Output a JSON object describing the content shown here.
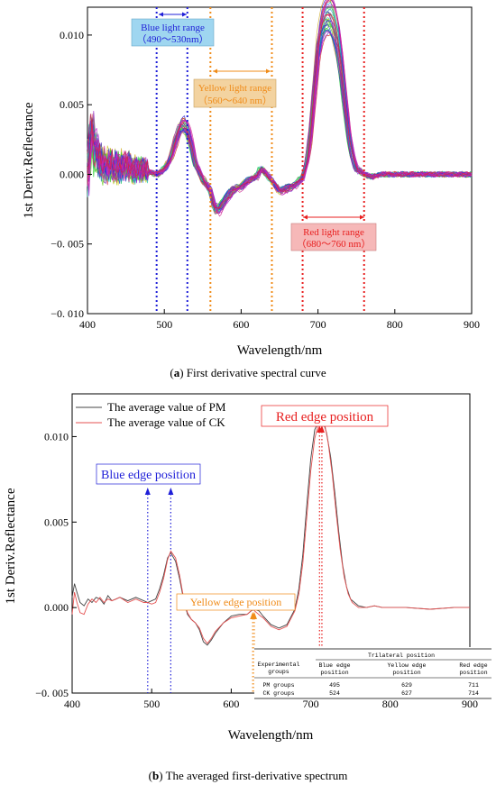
{
  "colors": {
    "blue": "#1f1fd8",
    "orange": "#f08c1a",
    "red": "#e82020",
    "blue_box": "#9fd6f0",
    "yellow_box": "#f3d3a0",
    "red_box": "#f6b8b8",
    "pm": "#444444",
    "ck": "#e45252"
  },
  "chart_data": [
    {
      "type": "line",
      "panel": "a",
      "caption_letter": "a",
      "caption_rest": " First derivative spectral curve",
      "xlabel": "Wavelength/nm",
      "ylabel": "1st Deriv.Reflectance",
      "xlim": [
        400,
        900
      ],
      "ylim": [
        -0.01,
        0.012
      ],
      "x_ticks": [
        "400",
        "500",
        "600",
        "700",
        "800",
        "900"
      ],
      "y_ticks": [
        "−0. 010",
        "−0. 005",
        "0.000",
        "0.005",
        "0.010"
      ],
      "grid": false,
      "description_of_series": "many overlapping first-derivative spectra (multicolored)",
      "profile_x": [
        400,
        405,
        410,
        420,
        430,
        440,
        450,
        460,
        470,
        480,
        490,
        500,
        505,
        510,
        515,
        520,
        525,
        530,
        535,
        540,
        550,
        560,
        565,
        570,
        575,
        580,
        590,
        600,
        610,
        620,
        625,
        630,
        640,
        650,
        660,
        670,
        680,
        685,
        690,
        695,
        700,
        705,
        710,
        715,
        720,
        725,
        730,
        735,
        740,
        745,
        750,
        760,
        770,
        780,
        800,
        820,
        850,
        880,
        900
      ],
      "profile_y": [
        0.0,
        0.0035,
        0.0015,
        0.0006,
        0.0008,
        0.0005,
        0.0007,
        0.0003,
        0.0004,
        0.0002,
        0.0,
        0.0004,
        0.0008,
        0.0015,
        0.0025,
        0.0034,
        0.0036,
        0.0032,
        0.0022,
        0.0008,
        -0.0004,
        -0.0012,
        -0.0024,
        -0.0026,
        -0.0022,
        -0.0017,
        -0.0011,
        -0.0009,
        -0.0004,
        -0.0002,
        0.0004,
        0.0002,
        -0.0005,
        -0.0012,
        -0.001,
        -0.0008,
        -0.0002,
        0.0008,
        0.0028,
        0.006,
        0.0092,
        0.0108,
        0.0114,
        0.0115,
        0.011,
        0.0098,
        0.0078,
        0.0052,
        0.0028,
        0.0012,
        0.0004,
        0.0,
        -0.0002,
        0.0,
        0.0,
        0.0,
        0.0,
        0.0,
        0.0
      ],
      "vlines": [
        {
          "x": 490,
          "color": "blue"
        },
        {
          "x": 530,
          "color": "blue"
        },
        {
          "x": 560,
          "color": "orange"
        },
        {
          "x": 640,
          "color": "orange"
        },
        {
          "x": 680,
          "color": "red"
        },
        {
          "x": 760,
          "color": "red"
        }
      ],
      "annotations": {
        "blue": {
          "line1": "Blue light range",
          "line2": "（490～530nm）"
        },
        "yellow": {
          "line1": "Yellow light range",
          "line2": "（560～640 nm）"
        },
        "red": {
          "line1": "Red light range",
          "line2": "（680～760 nm）"
        }
      }
    },
    {
      "type": "line",
      "panel": "b",
      "caption_letter": "b",
      "caption_rest": ") The averaged first-derivative spectrum",
      "caption_open": "(",
      "xlabel": "Wavelength/nm",
      "ylabel": "1st Deriv.Reflectance",
      "xlim": [
        400,
        900
      ],
      "ylim": [
        -0.005,
        0.0125
      ],
      "x_ticks": [
        "400",
        "500",
        "600",
        "700",
        "800",
        "900"
      ],
      "y_ticks": [
        "−0. 005",
        "0.000",
        "0.005",
        "0.010"
      ],
      "grid": false,
      "legend_position": "top-left",
      "series": [
        {
          "name": "The average value of PM",
          "color_key": "pm",
          "x": [
            400,
            403,
            406,
            410,
            415,
            420,
            425,
            430,
            435,
            440,
            445,
            450,
            460,
            470,
            480,
            490,
            495,
            500,
            505,
            510,
            515,
            520,
            524,
            530,
            535,
            540,
            545,
            550,
            555,
            560,
            565,
            570,
            575,
            580,
            590,
            600,
            610,
            620,
            625,
            629,
            635,
            640,
            650,
            660,
            670,
            680,
            685,
            690,
            695,
            700,
            705,
            711,
            716,
            720,
            725,
            730,
            735,
            740,
            745,
            750,
            760,
            770,
            780,
            790,
            800,
            820,
            850,
            880,
            900
          ],
          "y": [
            0.0006,
            0.0014,
            0.0009,
            0.0003,
            0.0001,
            0.0005,
            0.0003,
            0.0006,
            0.0005,
            0.0002,
            0.0007,
            0.0004,
            0.0006,
            0.0004,
            0.0006,
            0.0004,
            0.0003,
            0.0004,
            0.0005,
            0.0011,
            0.0019,
            0.0029,
            0.0032,
            0.0027,
            0.0017,
            0.0005,
            -0.0004,
            -0.0007,
            -0.0009,
            -0.0013,
            -0.002,
            -0.0022,
            -0.0019,
            -0.0015,
            -0.0009,
            -0.0005,
            -0.0004,
            -0.0004,
            -0.0002,
            -0.0001,
            -0.0002,
            -0.0005,
            -0.001,
            -0.0012,
            -0.001,
            -0.0001,
            0.0011,
            0.0031,
            0.006,
            0.0087,
            0.0104,
            0.011,
            0.0108,
            0.0102,
            0.0088,
            0.0068,
            0.0045,
            0.0025,
            0.0012,
            0.0005,
            0.0001,
            0.0,
            0.0001,
            0.0,
            0.0,
            0.0,
            -0.0001,
            0.0,
            0.0
          ]
        },
        {
          "name": "The average value of CK",
          "color_key": "ck",
          "x": [
            400,
            403,
            406,
            410,
            415,
            420,
            425,
            430,
            435,
            440,
            445,
            450,
            460,
            470,
            480,
            490,
            495,
            500,
            505,
            510,
            515,
            520,
            524,
            530,
            535,
            540,
            545,
            550,
            555,
            560,
            565,
            570,
            575,
            580,
            590,
            600,
            610,
            620,
            627,
            632,
            637,
            640,
            650,
            660,
            670,
            680,
            685,
            690,
            695,
            700,
            705,
            710,
            714,
            718,
            722,
            727,
            732,
            737,
            742,
            747,
            752,
            760,
            770,
            780,
            790,
            800,
            820,
            850,
            880,
            900
          ],
          "y": [
            -0.0004,
            0.0009,
            0.0003,
            -0.0003,
            -0.0004,
            0.0002,
            0.0005,
            0.0003,
            0.0006,
            0.0003,
            0.0005,
            0.0004,
            0.0006,
            0.0003,
            0.0005,
            0.0003,
            0.0003,
            0.0002,
            0.0003,
            0.0009,
            0.0017,
            0.0028,
            0.0033,
            0.0029,
            0.0019,
            0.0006,
            -0.0003,
            -0.0007,
            -0.0009,
            -0.0012,
            -0.0018,
            -0.0021,
            -0.0018,
            -0.0014,
            -0.0009,
            -0.0006,
            -0.0005,
            -0.0004,
            -0.0001,
            -0.0003,
            -0.0005,
            -0.0006,
            -0.0011,
            -0.0013,
            -0.0011,
            -0.0002,
            0.0008,
            0.0026,
            0.0053,
            0.008,
            0.0099,
            0.0108,
            0.011,
            0.0106,
            0.0096,
            0.0078,
            0.0055,
            0.0034,
            0.0018,
            0.0008,
            0.0003,
            0.0,
            0.0,
            0.0001,
            0.0,
            0.0,
            0.0,
            -0.0001,
            0.0,
            0.0
          ]
        }
      ],
      "markers": [
        {
          "label": "Blue edge position",
          "color": "blue",
          "positions": [
            495,
            524
          ]
        },
        {
          "label": "Yellow edge position",
          "color": "orange",
          "positions": [
            627,
            629
          ]
        },
        {
          "label": "Red edge position",
          "color": "red",
          "positions": [
            711,
            714
          ]
        }
      ],
      "table": {
        "title": "Trilateral position",
        "col_group_line1": "Experimental",
        "col_group_line2": "groups",
        "headers": [
          [
            "Blue edge",
            "position"
          ],
          [
            "Yellow edge",
            "position"
          ],
          [
            "Red edge",
            "position"
          ]
        ],
        "rows": [
          {
            "group": "PM groups",
            "blue": "495",
            "yellow": "629",
            "red": "711"
          },
          {
            "group": "CK groups",
            "blue": "524",
            "yellow": "627",
            "red": "714"
          }
        ]
      }
    }
  ]
}
